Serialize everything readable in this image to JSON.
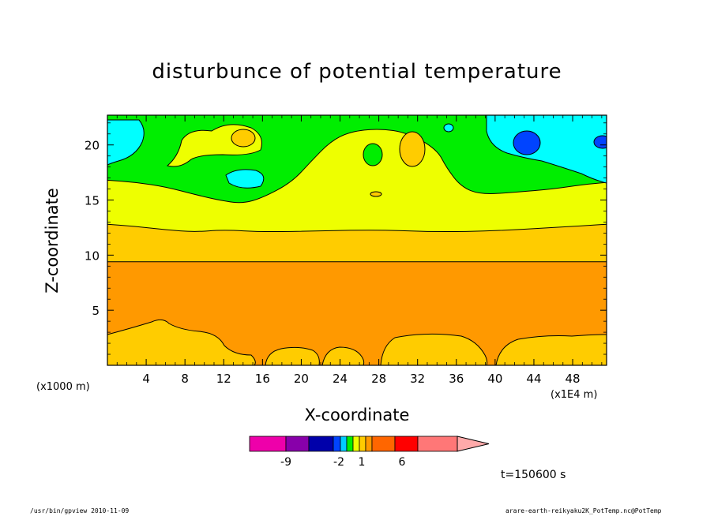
{
  "chart_data": {
    "type": "heatmap",
    "title": "disturbunce of potential temperature",
    "xlabel": "X-coordinate",
    "ylabel": "Z-coordinate",
    "x_unit_label": "(x1000 m)",
    "x_scale_label": "(x1E4 m)",
    "xlim": [
      0,
      51.5
    ],
    "ylim": [
      0,
      22.7
    ],
    "x_ticks": [
      4,
      8,
      12,
      16,
      20,
      24,
      28,
      32,
      36,
      40,
      44,
      48
    ],
    "y_ticks": [
      5,
      10,
      15,
      20
    ],
    "contour_layers": [
      {
        "level": "3 to 4",
        "color": "#ff9900",
        "top_profile": [
          [
            0,
            9.4
          ],
          [
            51.5,
            9.4
          ]
        ]
      },
      {
        "level": "2 to 3",
        "color": "#ffcc00",
        "top_profile": [
          [
            0,
            12.8
          ],
          [
            3,
            12.6
          ],
          [
            6,
            12.3
          ],
          [
            9,
            12.1
          ],
          [
            12,
            12.3
          ],
          [
            16,
            12.1
          ],
          [
            22,
            12.2
          ],
          [
            28,
            12.3
          ],
          [
            34,
            12.1
          ],
          [
            40,
            12.2
          ],
          [
            46,
            12.5
          ],
          [
            51.5,
            12.8
          ]
        ]
      },
      {
        "level": "1 to 2",
        "color": "#eeff00",
        "top_profile": [
          [
            0,
            16.8
          ],
          [
            3,
            16.6
          ],
          [
            6,
            16.2
          ],
          [
            9,
            15.5
          ],
          [
            12,
            14.9
          ],
          [
            14,
            14.7
          ],
          [
            16,
            15.2
          ],
          [
            19,
            16.6
          ],
          [
            21,
            18.5
          ],
          [
            23,
            20.3
          ],
          [
            25,
            21.2
          ],
          [
            28,
            21.5
          ],
          [
            31,
            21.1
          ],
          [
            34,
            19.6
          ],
          [
            35,
            17.9
          ],
          [
            36.5,
            16.2
          ],
          [
            38.5,
            15.5
          ],
          [
            42,
            15.7
          ],
          [
            46,
            16
          ],
          [
            49,
            16.4
          ],
          [
            51.5,
            16.6
          ]
        ]
      }
    ],
    "colorbar": {
      "colors": [
        "#ee00aa",
        "#8800aa",
        "#0000aa",
        "#0044ff",
        "#00ccff",
        "#00ee00",
        "#eeff00",
        "#ffcc00",
        "#ff9900",
        "#ff6600",
        "#ff0000",
        "#ff7777",
        "#ffaaaa"
      ],
      "labels": [
        "-9",
        "-2",
        "1",
        "6"
      ]
    },
    "time_label": "t=150600 s"
  },
  "footer": {
    "left": "/usr/bin/gpview  2010-11-09",
    "right": "arare-earth-reikyaku2K_PotTemp.nc@PotTemp"
  }
}
